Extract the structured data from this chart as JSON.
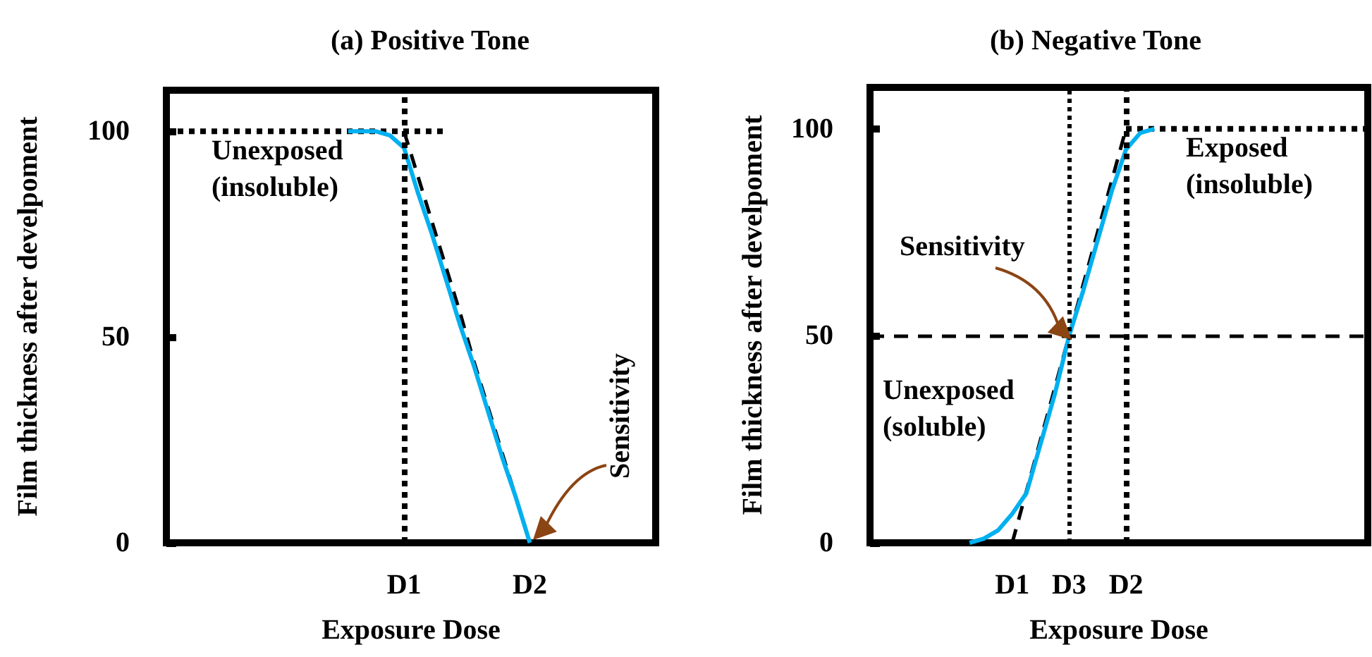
{
  "chart_data": [
    {
      "type": "line",
      "title": "(a) Positive Tone",
      "xlabel": "Exposure Dose",
      "ylabel": "Film thickness after develpoment",
      "marker": "none",
      "categories": [
        null,
        null,
        null,
        null,
        null,
        null,
        null,
        null,
        null,
        null,
        null,
        null,
        null,
        null,
        null,
        null,
        null,
        "D1",
        null,
        null,
        null,
        null,
        null,
        null,
        null,
        null,
        "D2",
        null,
        null,
        null,
        null,
        null,
        null,
        null,
        null,
        null
      ],
      "ylim": [
        0,
        110
      ],
      "yticks": [
        0,
        50,
        100
      ],
      "series": [
        {
          "color": "#000000",
          "line_style": "dotted",
          "values": [
            100,
            100,
            100,
            100,
            100,
            100,
            100,
            100,
            100,
            100,
            100,
            100,
            100,
            100,
            100,
            100,
            100,
            100,
            100,
            100,
            100,
            null,
            null,
            null,
            null,
            null,
            null,
            null,
            null,
            null,
            null,
            null,
            null,
            null,
            null,
            null
          ]
        },
        {
          "color": "#00b0f0",
          "line_style": "solid",
          "values": [
            null,
            null,
            null,
            null,
            null,
            null,
            null,
            null,
            null,
            null,
            null,
            null,
            null,
            100,
            100,
            100,
            99,
            96,
            85,
            75,
            64,
            53,
            43,
            32,
            21,
            11,
            0,
            null,
            null,
            null,
            null,
            null,
            null,
            null,
            null,
            null
          ]
        },
        {
          "color": "#000000",
          "line_style": "dashed",
          "values": [
            null,
            null,
            null,
            null,
            null,
            null,
            null,
            null,
            null,
            null,
            null,
            null,
            null,
            null,
            null,
            null,
            null,
            100,
            89,
            78,
            67,
            56,
            44,
            33,
            22,
            11,
            0,
            null,
            null,
            null,
            null,
            null,
            null,
            null,
            null,
            null
          ]
        }
      ],
      "ref_lines": [
        {
          "axis": "x",
          "value": "D1",
          "line_style": "dotted"
        }
      ],
      "annotations": [
        "Unexposed\n(insoluble)",
        "Sensitivity"
      ]
    },
    {
      "type": "line",
      "title": "(b) Negative Tone",
      "xlabel": "Exposure Dose",
      "ylabel": "Film thickness after develpoment",
      "marker": "none",
      "categories": [
        null,
        null,
        null,
        null,
        null,
        null,
        null,
        null,
        null,
        null,
        "D1",
        null,
        null,
        null,
        "D3",
        null,
        null,
        null,
        "D2",
        null,
        null,
        null,
        null,
        null,
        null,
        null,
        null,
        null,
        null,
        null,
        null,
        null,
        null,
        null,
        null,
        null
      ],
      "ylim": [
        0,
        110
      ],
      "yticks": [
        0,
        50,
        100
      ],
      "series": [
        {
          "color": "#000000",
          "line_style": "dotted",
          "values": [
            null,
            null,
            null,
            null,
            null,
            null,
            null,
            null,
            null,
            null,
            null,
            null,
            null,
            null,
            null,
            null,
            null,
            null,
            100,
            100,
            100,
            100,
            100,
            100,
            100,
            100,
            100,
            100,
            100,
            100,
            100,
            100,
            100,
            100,
            100,
            100
          ]
        },
        {
          "color": "#00b0f0",
          "line_style": "solid",
          "values": [
            null,
            null,
            null,
            null,
            null,
            null,
            null,
            0,
            1,
            3,
            7,
            12,
            24,
            36,
            50,
            61,
            73,
            85,
            95,
            99,
            100,
            null,
            null,
            null,
            null,
            null,
            null,
            null,
            null,
            null,
            null,
            null,
            null,
            null,
            null,
            null
          ]
        },
        {
          "color": "#000000",
          "line_style": "dashed",
          "values": [
            null,
            null,
            null,
            null,
            null,
            null,
            null,
            null,
            null,
            null,
            0,
            12.5,
            25,
            37.5,
            50,
            62.5,
            75,
            87.5,
            100,
            null,
            null,
            null,
            null,
            null,
            null,
            null,
            null,
            null,
            null,
            null,
            null,
            null,
            null,
            null,
            null,
            null
          ]
        }
      ],
      "ref_lines": [
        {
          "axis": "y",
          "value": 50,
          "line_style": "dashed"
        },
        {
          "axis": "x",
          "value": "D3",
          "line_style": "dotted"
        },
        {
          "axis": "x",
          "value": "D2",
          "line_style": "dotted"
        }
      ],
      "annotations": [
        "Exposed\n(insoluble)",
        "Sensitivity",
        "Unexposed\n(soluble)"
      ]
    }
  ]
}
